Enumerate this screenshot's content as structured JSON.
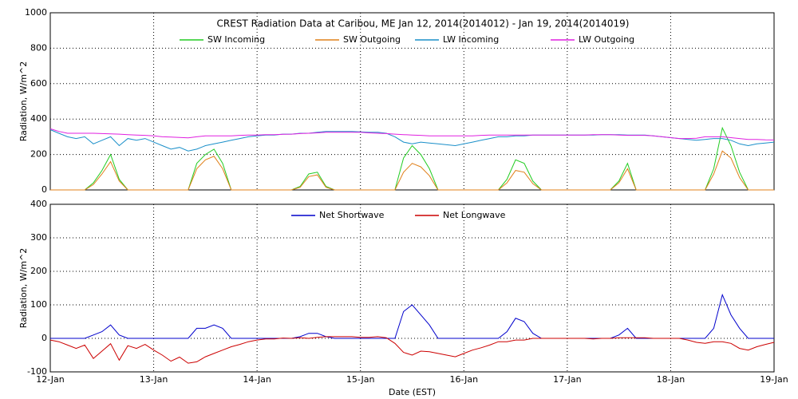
{
  "chart_data": [
    {
      "type": "line",
      "title": "CREST Radiation Data at Caribou, ME   Jan 12, 2014(2014012) - Jan 19, 2014(2014019)",
      "y_label": "Radiation, W/m^2",
      "x": [
        0,
        2,
        4,
        6,
        8,
        10,
        12,
        14,
        16,
        18,
        20,
        22,
        24,
        26,
        28,
        30,
        32,
        34,
        36,
        38,
        40,
        42,
        44,
        46,
        48,
        50,
        52,
        54,
        56,
        58,
        60,
        62,
        64,
        66,
        68,
        70,
        72,
        74,
        76,
        78,
        80,
        82,
        84,
        86,
        88,
        90,
        92,
        94,
        96,
        98,
        100,
        102,
        104,
        106,
        108,
        110,
        112,
        114,
        116,
        118,
        120,
        122,
        124,
        126,
        128,
        130,
        132,
        134,
        136,
        138,
        140,
        142,
        144,
        146,
        148,
        150,
        152,
        154,
        156,
        158,
        160,
        162,
        164,
        166,
        168
      ],
      "xlim": [
        0,
        168
      ],
      "xticks": [
        0,
        24,
        48,
        72,
        96,
        120,
        144,
        168
      ],
      "ylim": [
        0,
        1000
      ],
      "yticks": [
        0,
        200,
        400,
        600,
        800,
        1000
      ],
      "grid": true,
      "series": [
        {
          "name": "SW Incoming",
          "color": "#22cc22",
          "values": [
            0,
            0,
            0,
            0,
            0,
            40,
            110,
            200,
            60,
            0,
            0,
            0,
            0,
            0,
            0,
            0,
            0,
            150,
            200,
            230,
            150,
            0,
            0,
            0,
            0,
            0,
            0,
            0,
            0,
            20,
            90,
            100,
            20,
            0,
            0,
            0,
            0,
            0,
            0,
            0,
            0,
            180,
            250,
            200,
            120,
            0,
            0,
            0,
            0,
            0,
            0,
            0,
            0,
            60,
            170,
            150,
            50,
            0,
            0,
            0,
            0,
            0,
            0,
            0,
            0,
            0,
            50,
            150,
            0,
            0,
            0,
            0,
            0,
            0,
            0,
            0,
            0,
            120,
            350,
            250,
            100,
            0,
            0,
            0,
            0
          ]
        },
        {
          "name": "SW Outgoing",
          "color": "#e0801a",
          "values": [
            0,
            0,
            0,
            0,
            0,
            30,
            90,
            160,
            50,
            0,
            0,
            0,
            0,
            0,
            0,
            0,
            0,
            120,
            170,
            190,
            120,
            0,
            0,
            0,
            0,
            0,
            0,
            0,
            0,
            15,
            75,
            85,
            15,
            0,
            0,
            0,
            0,
            0,
            0,
            0,
            0,
            100,
            150,
            130,
            80,
            0,
            0,
            0,
            0,
            0,
            0,
            0,
            0,
            40,
            110,
            100,
            35,
            0,
            0,
            0,
            0,
            0,
            0,
            0,
            0,
            0,
            40,
            120,
            0,
            0,
            0,
            0,
            0,
            0,
            0,
            0,
            0,
            90,
            220,
            180,
            70,
            0,
            0,
            0,
            0
          ]
        },
        {
          "name": "LW Incoming",
          "color": "#1a8fc9",
          "values": [
            340,
            320,
            300,
            290,
            300,
            260,
            280,
            300,
            250,
            290,
            280,
            290,
            270,
            250,
            230,
            240,
            220,
            230,
            250,
            260,
            270,
            280,
            290,
            300,
            305,
            310,
            310,
            315,
            315,
            320,
            320,
            325,
            330,
            330,
            330,
            330,
            328,
            325,
            325,
            320,
            300,
            270,
            260,
            270,
            265,
            260,
            255,
            250,
            260,
            270,
            280,
            290,
            300,
            300,
            305,
            305,
            310,
            310,
            310,
            310,
            310,
            310,
            310,
            310,
            312,
            312,
            312,
            310,
            310,
            310,
            305,
            300,
            295,
            290,
            285,
            280,
            285,
            290,
            290,
            280,
            260,
            250,
            260,
            265,
            270
          ]
        },
        {
          "name": "LW Outgoing",
          "color": "#e020e0",
          "values": [
            345,
            330,
            320,
            320,
            320,
            320,
            318,
            316,
            315,
            312,
            310,
            308,
            305,
            300,
            298,
            296,
            294,
            300,
            305,
            305,
            305,
            305,
            308,
            310,
            310,
            312,
            312,
            314,
            315,
            318,
            320,
            322,
            325,
            325,
            325,
            325,
            325,
            322,
            320,
            318,
            315,
            312,
            310,
            308,
            305,
            305,
            305,
            305,
            305,
            305,
            308,
            310,
            310,
            310,
            310,
            310,
            310,
            310,
            310,
            310,
            310,
            310,
            310,
            312,
            312,
            312,
            310,
            308,
            308,
            308,
            305,
            300,
            295,
            290,
            290,
            292,
            300,
            300,
            300,
            295,
            290,
            285,
            285,
            283,
            282
          ]
        }
      ]
    },
    {
      "type": "line",
      "x_label": "Date (EST)",
      "y_label": "Radiation, W/m^2",
      "x": [
        0,
        2,
        4,
        6,
        8,
        10,
        12,
        14,
        16,
        18,
        20,
        22,
        24,
        26,
        28,
        30,
        32,
        34,
        36,
        38,
        40,
        42,
        44,
        46,
        48,
        50,
        52,
        54,
        56,
        58,
        60,
        62,
        64,
        66,
        68,
        70,
        72,
        74,
        76,
        78,
        80,
        82,
        84,
        86,
        88,
        90,
        92,
        94,
        96,
        98,
        100,
        102,
        104,
        106,
        108,
        110,
        112,
        114,
        116,
        118,
        120,
        122,
        124,
        126,
        128,
        130,
        132,
        134,
        136,
        138,
        140,
        142,
        144,
        146,
        148,
        150,
        152,
        154,
        156,
        158,
        160,
        162,
        164,
        166,
        168
      ],
      "xlim": [
        0,
        168
      ],
      "xticks": [
        {
          "value": 0,
          "label": "12-Jan"
        },
        {
          "value": 24,
          "label": "13-Jan"
        },
        {
          "value": 48,
          "label": "14-Jan"
        },
        {
          "value": 72,
          "label": "15-Jan"
        },
        {
          "value": 96,
          "label": "16-Jan"
        },
        {
          "value": 120,
          "label": "17-Jan"
        },
        {
          "value": 144,
          "label": "18-Jan"
        },
        {
          "value": 168,
          "label": "19-Jan"
        }
      ],
      "ylim": [
        -100,
        400
      ],
      "yticks": [
        -100,
        0,
        100,
        200,
        300,
        400
      ],
      "grid": true,
      "series": [
        {
          "name": "Net Shortwave",
          "color": "#0000cc",
          "values": [
            0,
            0,
            0,
            0,
            0,
            10,
            20,
            40,
            10,
            0,
            0,
            0,
            0,
            0,
            0,
            0,
            0,
            30,
            30,
            40,
            30,
            0,
            0,
            0,
            0,
            0,
            0,
            0,
            0,
            5,
            15,
            15,
            5,
            0,
            0,
            0,
            0,
            0,
            0,
            0,
            0,
            80,
            100,
            70,
            40,
            0,
            0,
            0,
            0,
            0,
            0,
            0,
            0,
            20,
            60,
            50,
            15,
            0,
            0,
            0,
            0,
            0,
            0,
            0,
            0,
            0,
            10,
            30,
            0,
            0,
            0,
            0,
            0,
            0,
            0,
            0,
            0,
            30,
            130,
            70,
            30,
            0,
            0,
            0,
            0
          ]
        },
        {
          "name": "Net Longwave",
          "color": "#cc0000",
          "values": [
            -5,
            -10,
            -20,
            -30,
            -20,
            -60,
            -38,
            -16,
            -65,
            -22,
            -30,
            -18,
            -35,
            -50,
            -68,
            -56,
            -74,
            -70,
            -55,
            -45,
            -35,
            -25,
            -18,
            -10,
            -5,
            -2,
            -2,
            1,
            0,
            2,
            0,
            3,
            5,
            5,
            5,
            5,
            3,
            3,
            5,
            2,
            -15,
            -42,
            -50,
            -38,
            -40,
            -45,
            -50,
            -55,
            -45,
            -35,
            -28,
            -20,
            -10,
            -10,
            -5,
            -5,
            0,
            0,
            0,
            0,
            0,
            0,
            0,
            -2,
            0,
            0,
            2,
            2,
            2,
            2,
            0,
            0,
            0,
            0,
            -5,
            -12,
            -15,
            -10,
            -10,
            -15,
            -30,
            -35,
            -25,
            -18,
            -12
          ]
        }
      ]
    }
  ]
}
